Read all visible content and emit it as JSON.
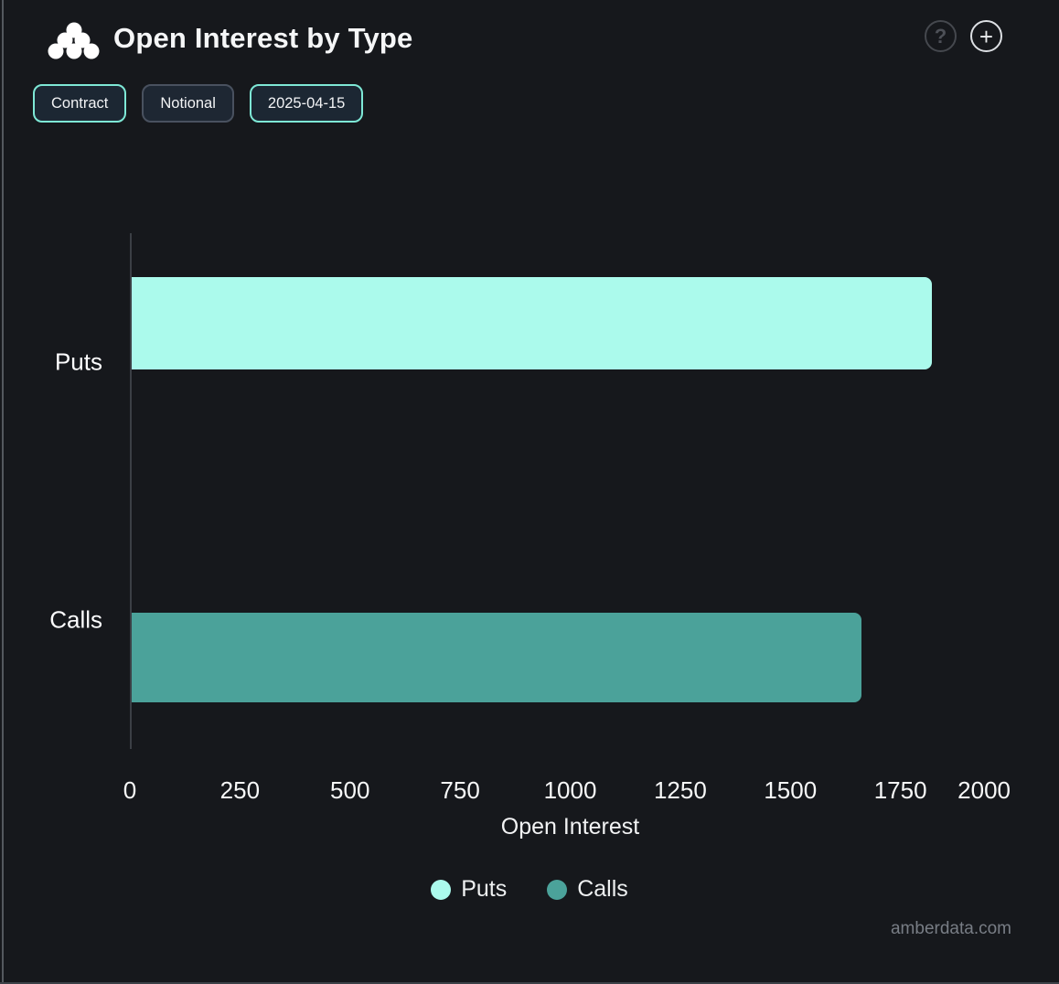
{
  "header": {
    "title": "Open Interest by Type",
    "help_icon_glyph": "?",
    "add_icon_glyph": "+"
  },
  "toolbar": {
    "buttons": [
      {
        "label": "Contract",
        "active": true
      },
      {
        "label": "Notional",
        "active": false
      },
      {
        "label": "2025-04-15",
        "active": true
      }
    ]
  },
  "chart_data": {
    "type": "bar",
    "orientation": "horizontal",
    "title": "Open Interest by Type",
    "categories": [
      "Puts",
      "Calls"
    ],
    "series": [
      {
        "name": "Puts",
        "value": 1820,
        "color": "#abfaec"
      },
      {
        "name": "Calls",
        "value": 1660,
        "color": "#4ba29a"
      }
    ],
    "xlabel": "Open Interest",
    "ylabel": "",
    "xlim": [
      0,
      2000
    ],
    "xticks": [
      0,
      250,
      500,
      750,
      1000,
      1250,
      1500,
      1750,
      2000
    ],
    "grid": false,
    "legend": [
      "Puts",
      "Calls"
    ],
    "legend_position": "bottom"
  },
  "watermark": "amberdata.com",
  "colors": {
    "background": "#16181c",
    "accent_mint": "#7ee8d6",
    "puts_bar": "#abfaec",
    "calls_bar": "#4ba29a",
    "axis_line": "#3b3f45",
    "text": "#f4f5f6",
    "watermark_text": "#787d85"
  }
}
